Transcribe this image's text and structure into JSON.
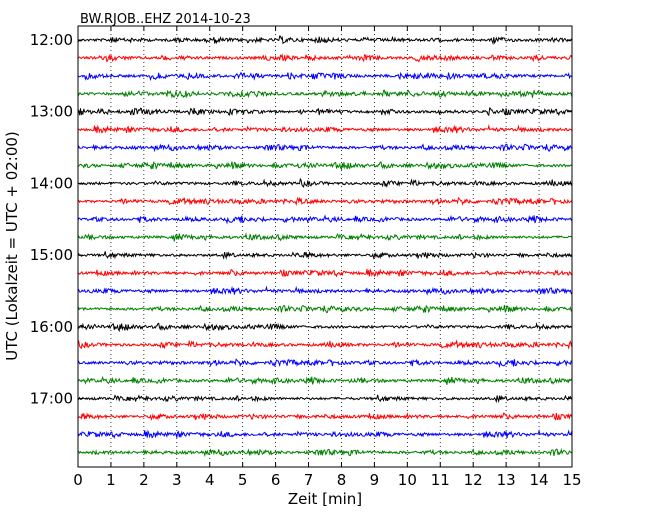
{
  "chart_data": {
    "type": "line",
    "title": "BW.RJOB..EHZ 2014-10-23",
    "xlabel": "Zeit  [min]",
    "ylabel": "UTC (Lokalzeit = UTC + 02:00)",
    "xlim": [
      0,
      15
    ],
    "xticks": [
      0,
      1,
      2,
      3,
      4,
      5,
      6,
      7,
      8,
      9,
      10,
      11,
      12,
      13,
      14,
      15
    ],
    "ytick_labels": [
      "12:00",
      "13:00",
      "14:00",
      "15:00",
      "16:00",
      "17:00"
    ],
    "grid": "vertical dotted at each minute",
    "trace_colors": [
      "#000000",
      "#ff0000",
      "#0000ff",
      "#008000"
    ],
    "trace_start_times": [
      "12:00",
      "12:15",
      "12:30",
      "12:45",
      "13:00",
      "13:15",
      "13:30",
      "13:45",
      "14:00",
      "14:15",
      "14:30",
      "14:45",
      "15:00",
      "15:15",
      "15:30",
      "15:45",
      "16:00",
      "16:15",
      "16:30",
      "16:45",
      "17:00",
      "17:15",
      "17:30",
      "17:45"
    ],
    "minutes_per_trace": 15
  }
}
